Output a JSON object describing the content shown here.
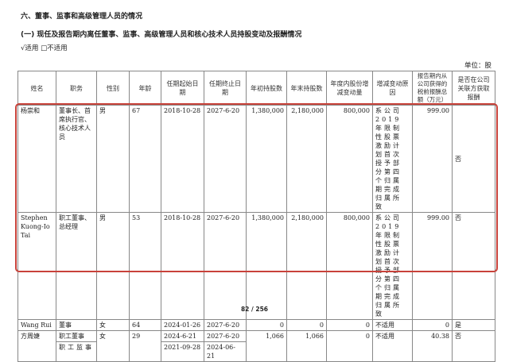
{
  "section_title": "六、董事、监事和高级管理人员的情况",
  "subsection_title": "(一) 现任及报告期内离任董事、监事、高级管理人员和核心技术人员持股变动及报酬情况",
  "applicability": "√适用 □不适用",
  "unit": "单位：股",
  "table": {
    "headers": [
      "姓名",
      "职务",
      "性别",
      "年龄",
      "任期起始日期",
      "任期终止日期",
      "年初持股数",
      "年末持股数",
      "年度内股份增减变动量",
      "增减变动原因",
      "报告期内从公司获得的税前报酬总额（万元）",
      "是否在公司关联方获取报酬"
    ],
    "rows": [
      {
        "name": "杨崇和",
        "title": "董事长、首席执行官、核心技术人员",
        "gender": "男",
        "age": "67",
        "start": "2018-10-28",
        "end": "2027-6-20",
        "begin_shares": "1,380,000",
        "end_shares": "2,180,000",
        "change": "800,000",
        "reason": "系公司2019年限制性股票激励计划首次授予部分第四个归属期完成归属所致",
        "pay": "999.00",
        "related": "否"
      },
      {
        "name": "Stephen Kuong-Io Tai",
        "title": "职工董事、总经理",
        "gender": "男",
        "age": "53",
        "start": "2018-10-28",
        "end": "2027-6-20",
        "begin_shares": "1,380,000",
        "end_shares": "2,180,000",
        "change": "800,000",
        "reason": "系公司2019年限制性股票激励计划首次授予部分第四个归属期完成归属所致",
        "pay": "999.00",
        "related": "否"
      },
      {
        "name": "Wang Rui",
        "title": "董事",
        "gender": "女",
        "age": "64",
        "start": "2024-01-26",
        "end": "2027-6-20",
        "begin_shares": "0",
        "end_shares": "0",
        "change": "0",
        "reason": "不适用",
        "pay": "0",
        "related": "是"
      },
      {
        "name": "方周婕",
        "title": "职工董事",
        "gender": "女",
        "age": "29",
        "start": "2024-6-21",
        "end": "2027-6-20",
        "begin_shares": "1,066",
        "end_shares": "1,066",
        "change": "0",
        "reason": "不适用",
        "pay": "40.38",
        "related": "否",
        "title2": "职工监事",
        "start2": "2021-09-28",
        "end2": "2024-06-21"
      }
    ]
  },
  "page_number": "82 / 256",
  "highlight_color": "#c8423a"
}
